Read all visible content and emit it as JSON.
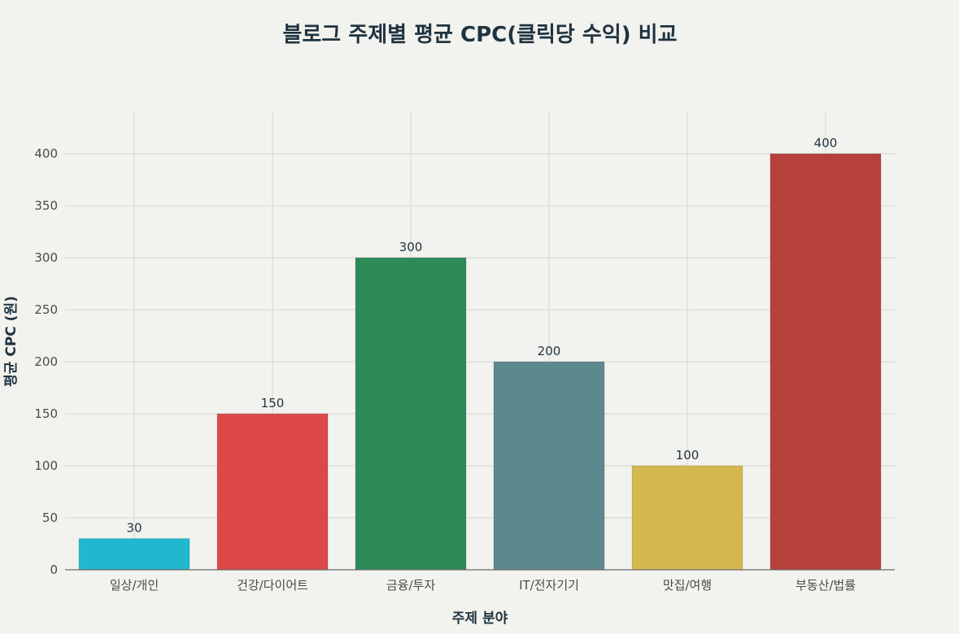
{
  "chart_data": {
    "type": "bar",
    "title": "블로그 주제별 평균 CPC(클릭당 수익) 비교",
    "xlabel": "주제 분야",
    "ylabel": "평균 CPC (원)",
    "categories": [
      "일상/개인",
      "건강/다이어트",
      "금융/투자",
      "IT/전자기기",
      "맛집/여행",
      "부동산/법률"
    ],
    "values": [
      30,
      150,
      300,
      200,
      100,
      400
    ],
    "colors": [
      "#20b8cf",
      "#dc4848",
      "#2e8b57",
      "#5e8890",
      "#d3b84d",
      "#b5403c"
    ],
    "ylim": [
      0,
      440
    ],
    "yticks": [
      0,
      50,
      100,
      150,
      200,
      250,
      300,
      350,
      400
    ],
    "grid": true,
    "data_labels": true
  }
}
